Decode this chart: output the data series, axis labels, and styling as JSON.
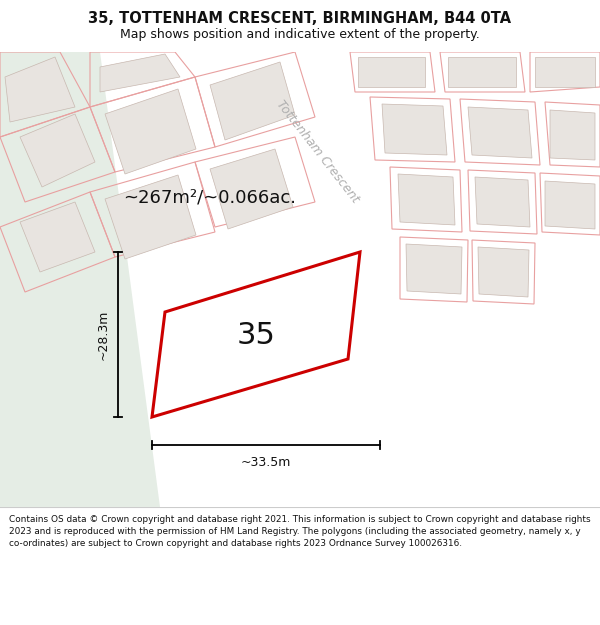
{
  "title_line1": "35, TOTTENHAM CRESCENT, BIRMINGHAM, B44 0TA",
  "title_line2": "Map shows position and indicative extent of the property.",
  "area_label": "~267m²/~0.066ac.",
  "number_label": "35",
  "width_label": "~33.5m",
  "height_label": "~28.3m",
  "street_label": "Tottenham Crescent",
  "footer_text": "Contains OS data © Crown copyright and database right 2021. This information is subject to Crown copyright and database rights 2023 and is reproduced with the permission of HM Land Registry. The polygons (including the associated geometry, namely x, y co-ordinates) are subject to Crown copyright and database rights 2023 Ordnance Survey 100026316.",
  "map_bg": "#f7f7f5",
  "highlight_color": "#cc0000",
  "highlight_fill": "#ffffff",
  "green_color": "#e5ede5",
  "plot_fill": "#e8e4e0",
  "plot_edge": "#c8b8b0",
  "pink_edge": "#e8a0a0",
  "road_color": "#ffffff",
  "footer_bg": "#ffffff",
  "title_bg": "#ffffff",
  "title_fontsize": 10.5,
  "subtitle_fontsize": 9,
  "area_fontsize": 13,
  "number_fontsize": 22,
  "dim_fontsize": 9,
  "street_fontsize": 9
}
